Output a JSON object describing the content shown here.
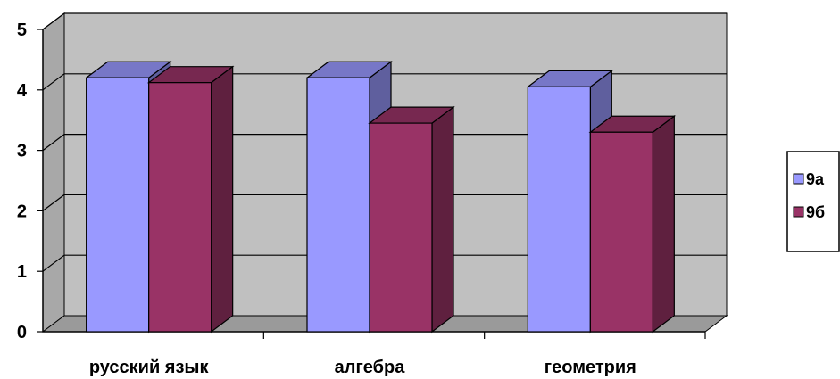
{
  "chart_data": {
    "type": "bar",
    "three_d": true,
    "categories": [
      "русский язык",
      "алгебра",
      "геометрия"
    ],
    "series": [
      {
        "name": "9а",
        "values": [
          4.2,
          4.2,
          4.05
        ],
        "color": "#9999ff"
      },
      {
        "name": "9б",
        "values": [
          4.12,
          3.45,
          3.3
        ],
        "color": "#993366"
      }
    ],
    "ylim": [
      0,
      5
    ],
    "yticks": [
      "0",
      "1",
      "2",
      "3",
      "4",
      "5"
    ],
    "grid": true,
    "legend_position": "right",
    "wall_color": "#c0c0c0",
    "title": "",
    "xlabel": "",
    "ylabel": ""
  }
}
